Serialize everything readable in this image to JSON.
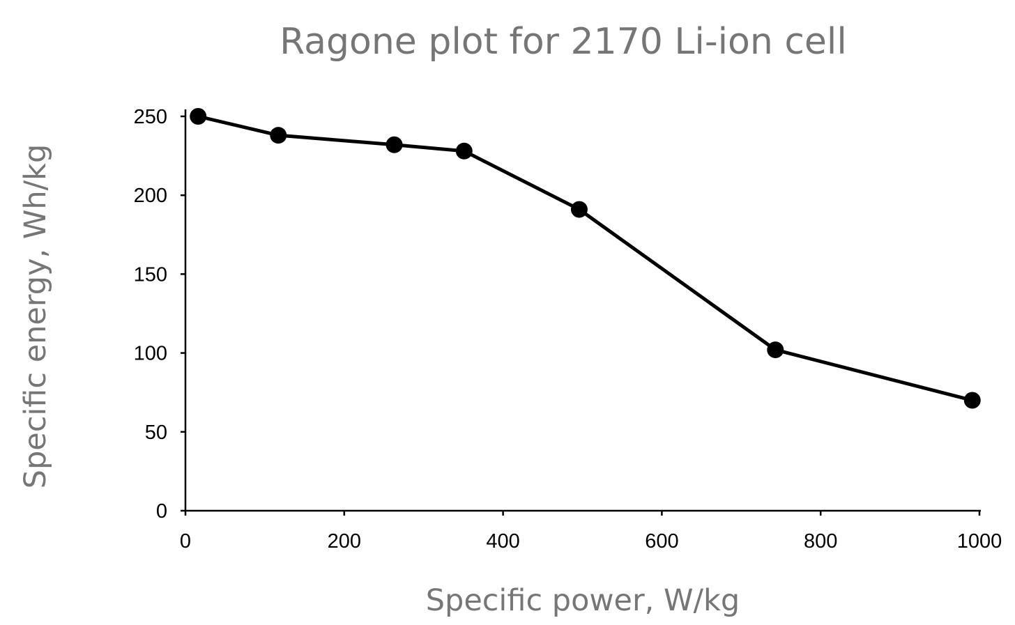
{
  "chart_data": {
    "type": "line",
    "title": "Ragone plot for 2170 Li-ion cell",
    "xlabel": "Specific power, W/kg",
    "ylabel": "Specific energy, Wh/kg",
    "xlim": [
      0,
      1000
    ],
    "ylim": [
      0,
      250
    ],
    "xticks": [
      0,
      200,
      400,
      600,
      800,
      1000
    ],
    "yticks": [
      0,
      50,
      100,
      150,
      200,
      250
    ],
    "xtick_labels": [
      "0",
      "200",
      "400",
      "600",
      "800",
      "1000"
    ],
    "ytick_labels": [
      "0",
      "50",
      "100",
      "150",
      "200",
      "250"
    ],
    "grid": false,
    "legend": "none",
    "series": [
      {
        "color": "#000000",
        "marker": "circle",
        "x": [
          16,
          117,
          263,
          351,
          496,
          743,
          991
        ],
        "y": [
          250,
          238,
          232,
          228,
          191,
          102,
          70
        ]
      }
    ]
  }
}
